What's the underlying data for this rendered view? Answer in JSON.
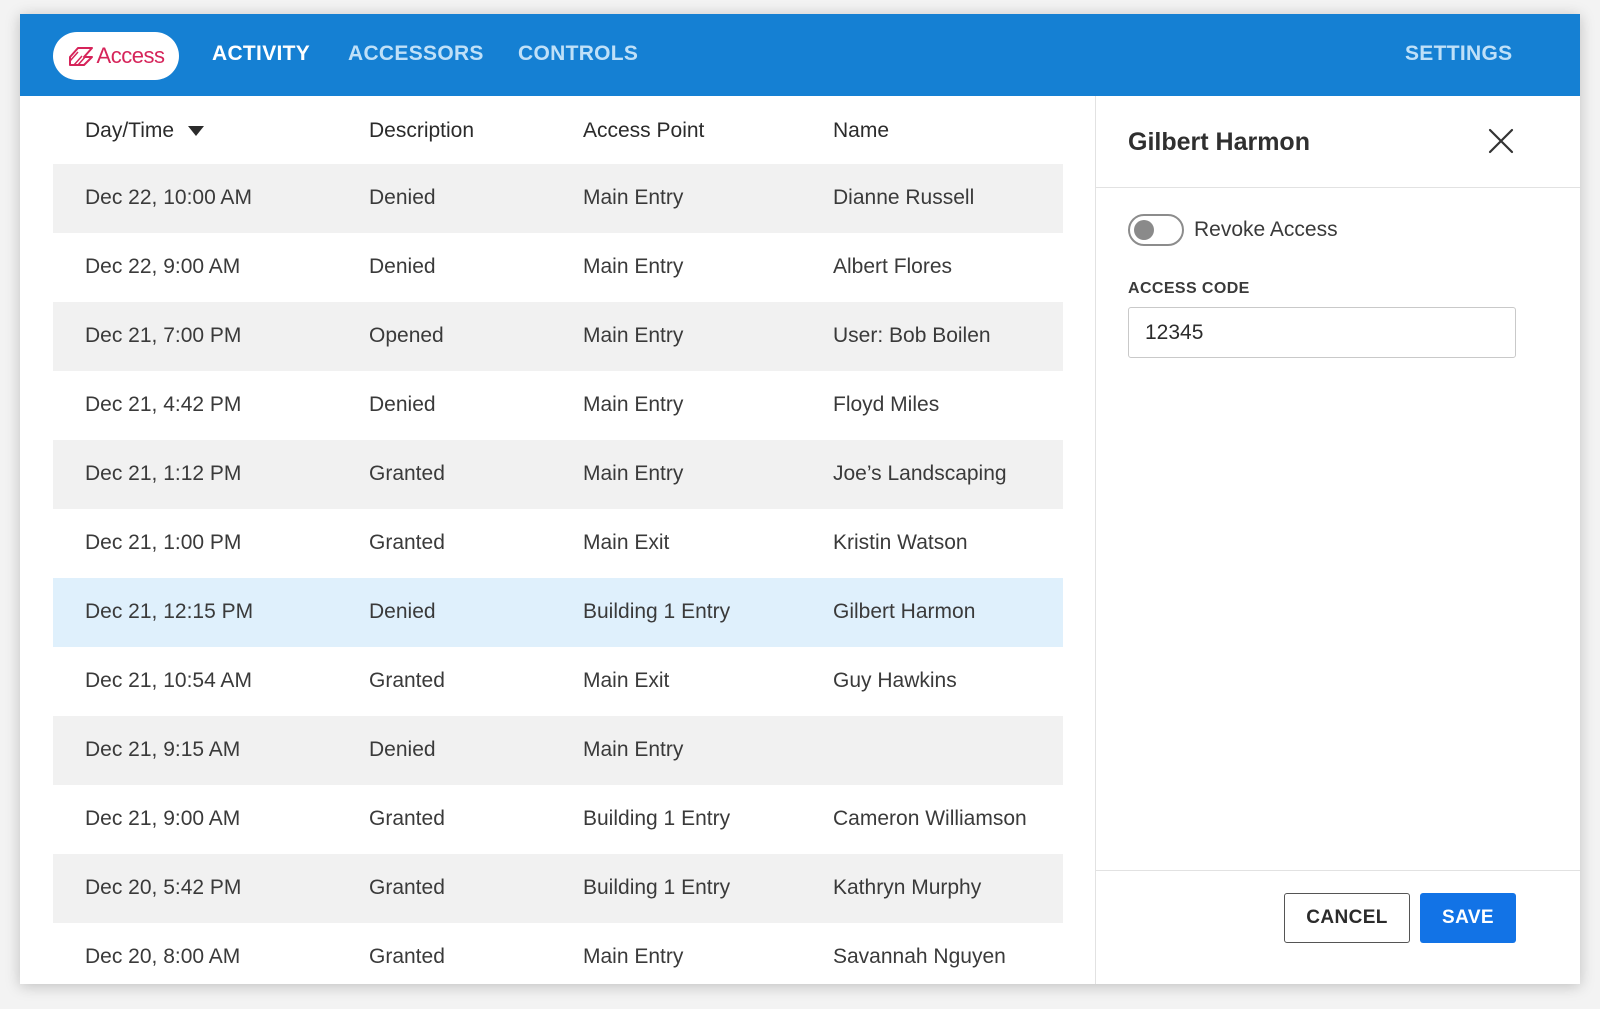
{
  "app": {
    "logo_text": "Access",
    "brand_color": "#1580d3",
    "logo_color": "#d6245a"
  },
  "nav": {
    "tabs": [
      "ACTIVITY",
      "ACCESSORS",
      "CONTROLS"
    ],
    "active_tab": "ACTIVITY",
    "settings_label": "SETTINGS"
  },
  "table": {
    "columns": [
      "Day/Time",
      "Description",
      "Access Point",
      "Name"
    ],
    "sort_column": "Day/Time",
    "sort_direction": "descending",
    "selected_row": 6,
    "rows": [
      [
        "Dec 22, 10:00 AM",
        "Denied",
        "Main Entry",
        "Dianne Russell"
      ],
      [
        "Dec 22, 9:00 AM",
        "Denied",
        "Main Entry",
        "Albert Flores"
      ],
      [
        "Dec 21, 7:00 PM",
        "Opened",
        "Main Entry",
        "User: Bob Boilen"
      ],
      [
        "Dec 21, 4:42 PM",
        "Denied",
        "Main Entry",
        "Floyd Miles"
      ],
      [
        "Dec 21, 1:12 PM",
        "Granted",
        "Main Entry",
        "Joe’s Landscaping"
      ],
      [
        "Dec 21, 1:00 PM",
        "Granted",
        "Main Exit",
        "Kristin Watson"
      ],
      [
        "Dec 21, 12:15 PM",
        "Denied",
        "Building 1 Entry",
        "Gilbert Harmon"
      ],
      [
        "Dec 21, 10:54 AM",
        "Granted",
        "Main Exit",
        "Guy Hawkins"
      ],
      [
        "Dec 21, 9:15 AM",
        "Denied",
        "Main Entry",
        ""
      ],
      [
        "Dec 21, 9:00 AM",
        "Granted",
        "Building 1 Entry",
        "Cameron Williamson"
      ],
      [
        "Dec 20, 5:42 PM",
        "Granted",
        "Building 1 Entry",
        "Kathryn Murphy"
      ],
      [
        "Dec 20, 8:00 AM",
        "Granted",
        "Main Entry",
        "Savannah Nguyen"
      ]
    ]
  },
  "panel": {
    "title": "Gilbert Harmon",
    "toggle_label": "Revoke Access",
    "toggle_on": false,
    "field_label": "ACCESS CODE",
    "access_code": "12345",
    "cancel_label": "CANCEL",
    "save_label": "SAVE",
    "save_color": "#1273e6"
  }
}
